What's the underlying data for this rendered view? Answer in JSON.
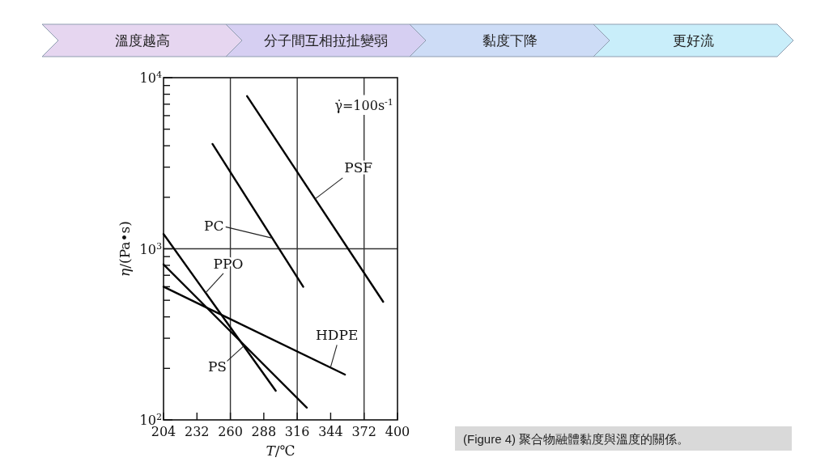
{
  "chart_data": {
    "type": "line",
    "xlabel": "*T*/℃",
    "ylabel": "*η*/(Pa•s)",
    "log": "y",
    "xlim": [
      204,
      400
    ],
    "xticks": [
      204,
      232,
      260,
      288,
      316,
      344,
      372,
      400
    ],
    "ylim": [
      100,
      10000
    ],
    "yticks": [
      {
        "value": 100,
        "label": "10$^{2}$"
      },
      {
        "value": 200,
        "label": null
      },
      {
        "value": 300,
        "label": null
      },
      {
        "value": 400,
        "label": null
      },
      {
        "value": 500,
        "label": null
      },
      {
        "value": 600,
        "label": null
      },
      {
        "value": 700,
        "label": null
      },
      {
        "value": 800,
        "label": null
      },
      {
        "value": 900,
        "label": null
      },
      {
        "value": 1000,
        "label": "10$^{3}$"
      },
      {
        "value": 2000,
        "label": null
      },
      {
        "value": 3000,
        "label": null
      },
      {
        "value": 4000,
        "label": null
      },
      {
        "value": 5000,
        "label": null
      },
      {
        "value": 6000,
        "label": null
      },
      {
        "value": 7000,
        "label": null
      },
      {
        "value": 8000,
        "label": null
      },
      {
        "value": 9000,
        "label": null
      },
      {
        "value": 10000,
        "label": "10$^{4}$"
      }
    ],
    "ref_lines": [
      {
        "axis": "x",
        "value": 260
      },
      {
        "axis": "x",
        "value": 316
      },
      {
        "axis": "x",
        "value": 372
      },
      {
        "axis": "y",
        "value": 1000
      }
    ],
    "series": [
      {
        "name": "PSF",
        "color": "#000000",
        "x": [
          274,
          388
        ],
        "values": [
          7800,
          490
        ]
      },
      {
        "name": "PC",
        "color": "#000000",
        "x": [
          245,
          321
        ],
        "values": [
          4100,
          600
        ]
      },
      {
        "name": "PPO",
        "color": "#000000",
        "x": [
          204,
          298
        ],
        "values": [
          1220,
          148
        ]
      },
      {
        "name": "PS",
        "color": "#000000",
        "x": [
          204,
          324
        ],
        "values": [
          810,
          118
        ]
      },
      {
        "name": "HDPE",
        "color": "#000000",
        "x": [
          204,
          356
        ],
        "values": [
          600,
          184
        ]
      }
    ],
    "annotations": [
      "溫度越高",
      "分子間互相拉扯變弱",
      "黏度下降",
      "更好流",
      "γ̇=100s$^{-1}$",
      "(Figure 4)  聚合物融體黏度與溫度的關係。"
    ]
  }
}
